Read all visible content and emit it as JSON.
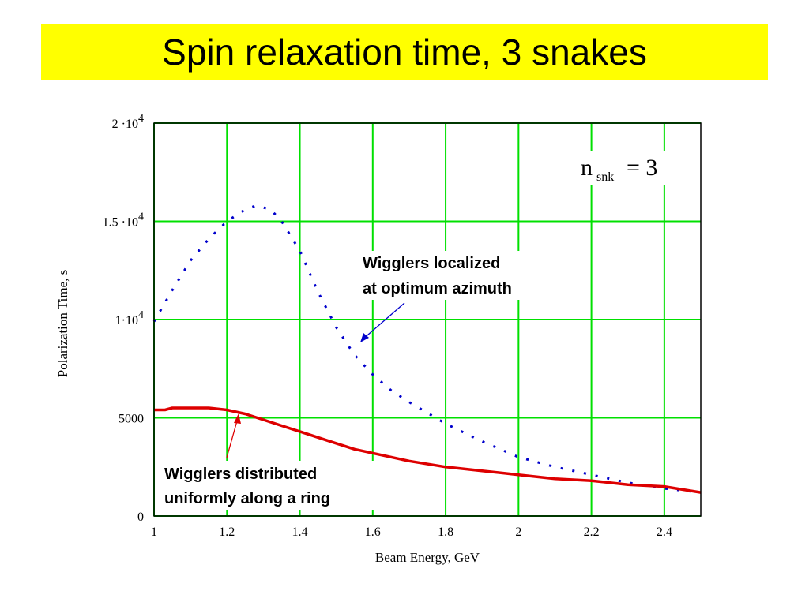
{
  "title": "Spin relaxation time, 3 snakes",
  "colors": {
    "banner": "#ffff00",
    "grid": "#00e000",
    "series_localized": "#0000cc",
    "series_distributed": "#dd0000",
    "arrow_localized": "#0000cc",
    "arrow_distributed": "#dd0000"
  },
  "chart_data": {
    "type": "line",
    "xlabel": "Beam Energy,  GeV",
    "ylabel": "Polarization Time,  s",
    "xlim": [
      1,
      2.5
    ],
    "ylim": [
      0,
      20000
    ],
    "grid": true,
    "x_ticks": [
      {
        "value": 1,
        "label": "1"
      },
      {
        "value": 1.2,
        "label": "1.2"
      },
      {
        "value": 1.4,
        "label": "1.4"
      },
      {
        "value": 1.6,
        "label": "1.6"
      },
      {
        "value": 1.8,
        "label": "1.8"
      },
      {
        "value": 2,
        "label": "2"
      },
      {
        "value": 2.2,
        "label": "2.2"
      },
      {
        "value": 2.4,
        "label": "2.4"
      }
    ],
    "y_ticks": [
      {
        "value": 0,
        "label": "0"
      },
      {
        "value": 5000,
        "label": "5000"
      },
      {
        "value": 10000,
        "label": "1·10",
        "sup": "4"
      },
      {
        "value": 15000,
        "label": "1.5 ·10",
        "sup": "4"
      },
      {
        "value": 20000,
        "label": "2 ·10",
        "sup": "4"
      }
    ],
    "series": [
      {
        "style": "dotted",
        "x": [
          1.0,
          1.05,
          1.1,
          1.15,
          1.2,
          1.25,
          1.28,
          1.32,
          1.35,
          1.4,
          1.45,
          1.5,
          1.55,
          1.6,
          1.65,
          1.7,
          1.8,
          1.9,
          2.0,
          2.1,
          2.2,
          2.3,
          2.4,
          2.5
        ],
        "y": [
          9900,
          11500,
          13000,
          14100,
          15000,
          15600,
          15800,
          15600,
          15000,
          13500,
          11400,
          9600,
          8200,
          7200,
          6400,
          5800,
          4700,
          3800,
          3000,
          2500,
          2100,
          1700,
          1400,
          1200
        ]
      },
      {
        "style": "solid",
        "x": [
          1.0,
          1.03,
          1.05,
          1.1,
          1.15,
          1.2,
          1.25,
          1.3,
          1.35,
          1.4,
          1.45,
          1.5,
          1.55,
          1.6,
          1.7,
          1.8,
          1.9,
          2.0,
          2.1,
          2.2,
          2.3,
          2.4,
          2.5
        ],
        "y": [
          5400,
          5400,
          5500,
          5500,
          5500,
          5400,
          5200,
          4900,
          4600,
          4300,
          4000,
          3700,
          3400,
          3200,
          2800,
          2500,
          2300,
          2100,
          1900,
          1800,
          1600,
          1500,
          1200
        ]
      }
    ],
    "annotations": [
      {
        "lines": [
          "Wigglers localized",
          "at optimum azimuth"
        ]
      },
      {
        "lines": [
          "Wigglers distributed",
          "uniformly along a ring"
        ]
      }
    ],
    "parameter": {
      "base": "n",
      "subscript": "snk",
      "relation": "= 3"
    }
  }
}
